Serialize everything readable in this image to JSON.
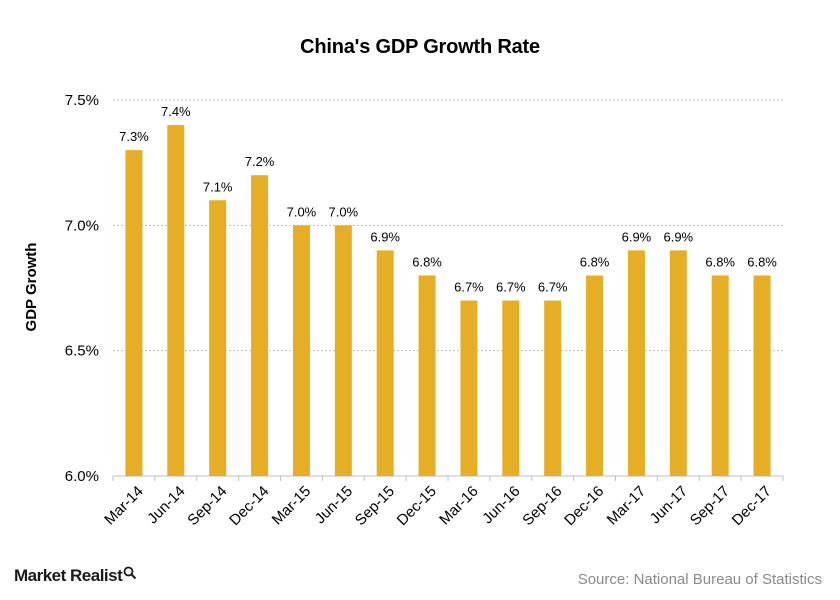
{
  "chart_data": {
    "type": "bar",
    "title": "China's  GDP Growth Rate",
    "xlabel": "",
    "ylabel": "GDP Growth",
    "ylim": [
      6.0,
      7.5
    ],
    "yticks": [
      6.0,
      6.5,
      7.0,
      7.5
    ],
    "ytick_labels": [
      "6.0%",
      "6.5%",
      "7.0%",
      "7.5%"
    ],
    "grid": "horizontal dotted",
    "categories": [
      "Mar-14",
      "Jun-14",
      "Sep-14",
      "Dec-14",
      "Mar-15",
      "Jun-15",
      "Sep-15",
      "Dec-15",
      "Mar-16",
      "Jun-16",
      "Sep-16",
      "Dec-16",
      "Mar-17",
      "Jun-17",
      "Sep-17",
      "Dec-17"
    ],
    "values": [
      7.3,
      7.4,
      7.1,
      7.2,
      7.0,
      7.0,
      6.9,
      6.8,
      6.7,
      6.7,
      6.7,
      6.8,
      6.9,
      6.9,
      6.8,
      6.8
    ],
    "data_labels": [
      "7.3%",
      "7.4%",
      "7.1%",
      "7.2%",
      "7.0%",
      "7.0%",
      "6.9%",
      "6.8%",
      "6.7%",
      "6.7%",
      "6.7%",
      "6.8%",
      "6.9%",
      "6.9%",
      "6.8%",
      "6.8%"
    ],
    "bar_color": "#E5AE25",
    "grid_color": "#BFBFBF"
  },
  "footer": {
    "brand": "Market Realist",
    "brand_icon": "magnifier-icon",
    "source": "Source: National Bureau of Statistics"
  }
}
